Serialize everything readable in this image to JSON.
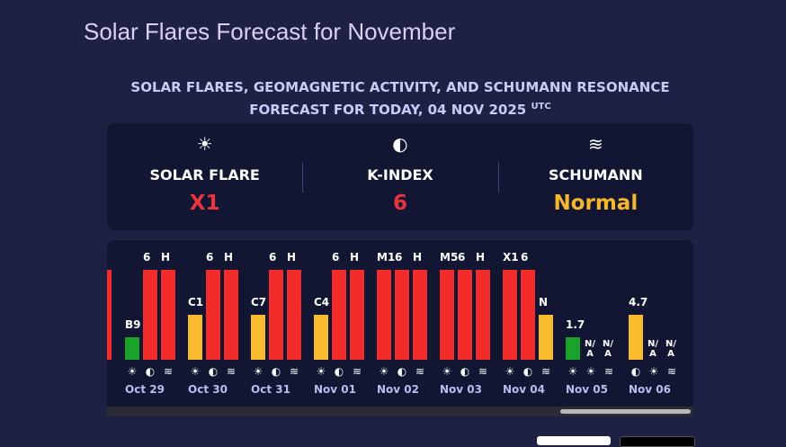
{
  "header": {
    "title": "Solar Flares Forecast for November",
    "subtitle": "SOLAR FLARES, GEOMAGNETIC ACTIVITY, AND SCHUMANN RESONANCE FORECAST FOR TODAY, 04 NOV 2025",
    "timezone": "UTC"
  },
  "today": [
    {
      "icon": "☀",
      "label": "SOLAR FLARE",
      "value": "X1",
      "color": "#e8343a"
    },
    {
      "icon": "◐",
      "label": "K-INDEX",
      "value": "6",
      "color": "#e8343a"
    },
    {
      "icon": "≋",
      "label": "SCHUMANN",
      "value": "Normal",
      "color": "#f4b62c"
    }
  ],
  "days": [
    {
      "date": "Oct 29",
      "items": [
        {
          "label": "B9",
          "color": "#1aa32a",
          "icon": "☀"
        },
        {
          "label": "6",
          "color": "#f22b2b",
          "icon": "◐"
        },
        {
          "label": "H",
          "color": "#f22b2b",
          "icon": "≋"
        }
      ]
    },
    {
      "date": "Oct 30",
      "items": [
        {
          "label": "C1",
          "color": "#f9bc2e",
          "icon": "☀"
        },
        {
          "label": "6",
          "color": "#f22b2b",
          "icon": "◐"
        },
        {
          "label": "H",
          "color": "#f22b2b",
          "icon": "≋"
        }
      ]
    },
    {
      "date": "Oct 31",
      "items": [
        {
          "label": "C7",
          "color": "#f9bc2e",
          "icon": "☀"
        },
        {
          "label": "6",
          "color": "#f22b2b",
          "icon": "◐"
        },
        {
          "label": "H",
          "color": "#f22b2b",
          "icon": "≋"
        }
      ]
    },
    {
      "date": "Nov 01",
      "items": [
        {
          "label": "C4",
          "color": "#f9bc2e",
          "icon": "☀"
        },
        {
          "label": "6",
          "color": "#f22b2b",
          "icon": "◐"
        },
        {
          "label": "H",
          "color": "#f22b2b",
          "icon": "≋"
        }
      ]
    },
    {
      "date": "Nov 02",
      "items": [
        {
          "label": "M1",
          "color": "#f22b2b",
          "icon": "☀"
        },
        {
          "label": "6",
          "color": "#f22b2b",
          "icon": "◐"
        },
        {
          "label": "H",
          "color": "#f22b2b",
          "icon": "≋"
        }
      ]
    },
    {
      "date": "Nov 03",
      "items": [
        {
          "label": "M5",
          "color": "#f22b2b",
          "icon": "☀"
        },
        {
          "label": "6",
          "color": "#f22b2b",
          "icon": "◐"
        },
        {
          "label": "H",
          "color": "#f22b2b",
          "icon": "≋"
        }
      ]
    },
    {
      "date": "Nov 04",
      "items": [
        {
          "label": "X1",
          "color": "#f22b2b",
          "icon": "☀"
        },
        {
          "label": "6",
          "color": "#f22b2b",
          "icon": "◐"
        },
        {
          "label": "N",
          "color": "#f9bc2e",
          "icon": "≋"
        }
      ]
    },
    {
      "date": "Nov 05",
      "items": [
        {
          "label": "1.7",
          "color": "#1aa32a",
          "icon": "☀"
        },
        {
          "label": "N/A",
          "icon": "☀"
        },
        {
          "label": "N/A",
          "icon": "≋"
        }
      ]
    },
    {
      "date": "Nov 06",
      "items": [
        {
          "label": "4.7",
          "color": "#f9bc2e",
          "icon": "◐"
        },
        {
          "label": "N/A",
          "icon": "☀"
        },
        {
          "label": "N/A",
          "icon": "≋"
        }
      ]
    }
  ]
}
